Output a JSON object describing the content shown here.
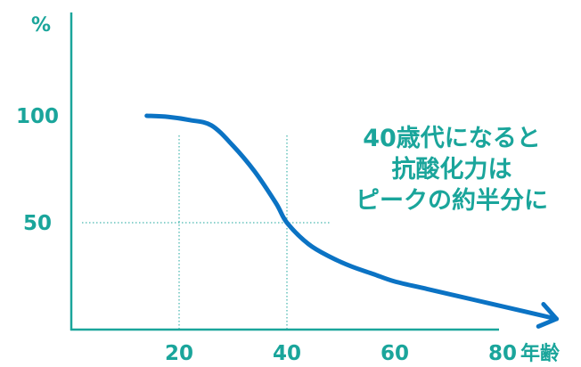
{
  "colors": {
    "accent": "#1aa59b",
    "curve": "#0b73c4",
    "axis": "#1aa59b",
    "guide": "#1aa59b"
  },
  "chart_data": {
    "type": "line",
    "title": "",
    "ylabel": "%",
    "xlabel": "年齢",
    "xlim": [
      0,
      98
    ],
    "ylim": [
      0,
      120
    ],
    "x_ticks": [
      20,
      40,
      60,
      80
    ],
    "y_ticks": [
      50,
      100
    ],
    "x_tick_labels": [
      "20",
      "40",
      "60",
      "80"
    ],
    "y_tick_labels": [
      "50",
      "100"
    ],
    "grid": false,
    "guides": [
      {
        "axis": "x",
        "value": 20
      },
      {
        "axis": "x",
        "value": 40
      },
      {
        "axis": "y",
        "value": 50
      }
    ],
    "series": [
      {
        "arrow": true,
        "x": [
          14,
          18,
          22,
          26,
          30,
          34,
          38,
          40,
          44,
          48,
          52,
          56,
          60,
          66,
          72,
          78,
          84,
          90
        ],
        "y": [
          100,
          99.5,
          98,
          95.5,
          86,
          74,
          59,
          50,
          40,
          34,
          29.5,
          26,
          22.5,
          19,
          15.5,
          12,
          8.5,
          5
        ]
      }
    ]
  },
  "annotation": {
    "lines": [
      "40歳代になると",
      "抗酸化力は",
      "ピークの約半分に"
    ]
  }
}
